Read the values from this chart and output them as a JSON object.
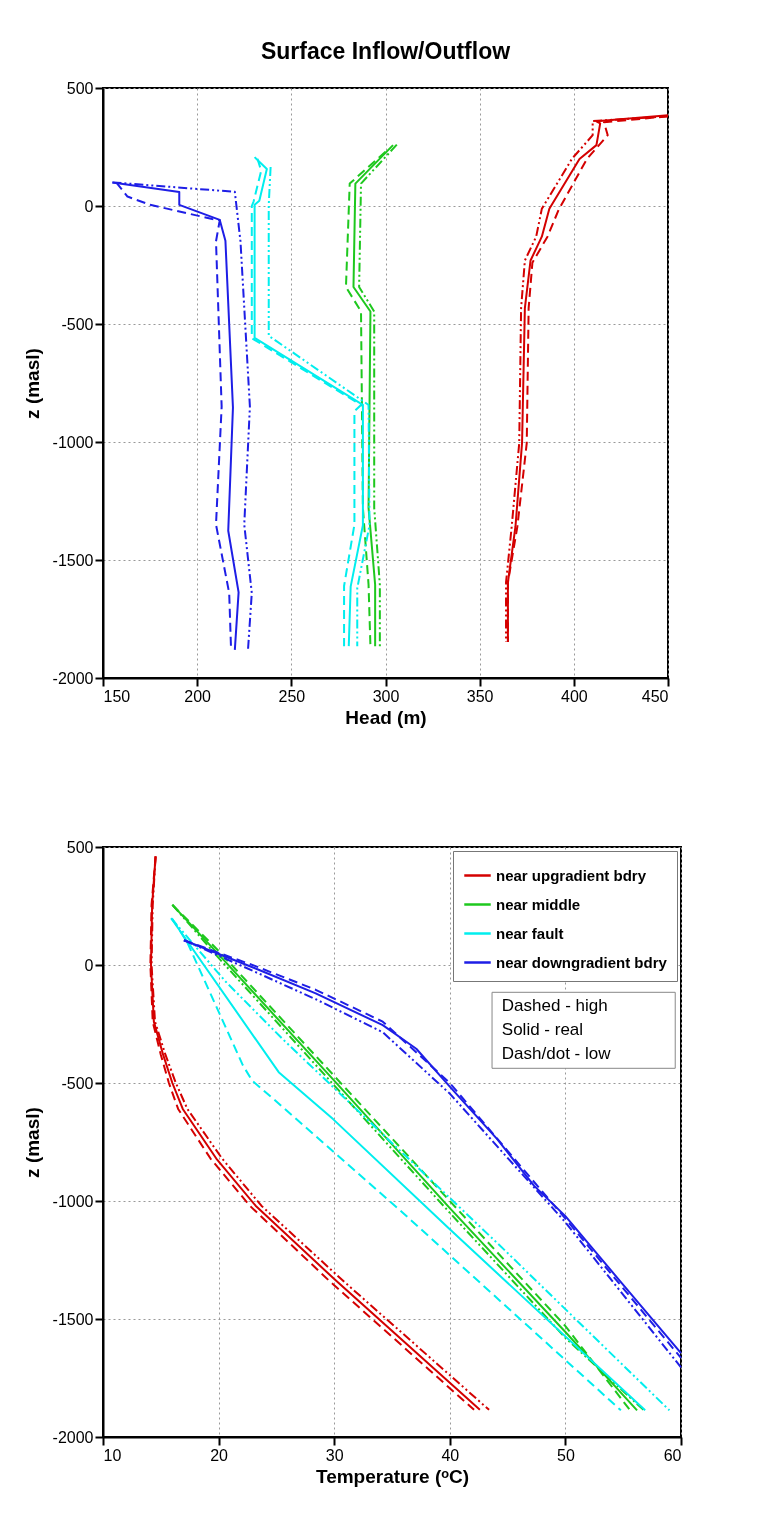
{
  "chart_data": [
    {
      "type": "line",
      "title": "Surface Inflow/Outflow",
      "xlabel": "Head (m)",
      "ylabel": "z (masl)",
      "xlim": [
        150,
        450
      ],
      "ylim": [
        -2000,
        500
      ],
      "xticks": [
        150,
        200,
        250,
        300,
        350,
        400,
        450
      ],
      "yticks": [
        -2000,
        -1500,
        -1000,
        -500,
        0,
        500
      ],
      "grid": true,
      "series": [
        {
          "color": "#d40000",
          "line_style": "solid",
          "x": [
            450,
            412,
            414,
            412,
            403,
            387,
            383,
            377,
            374,
            372.5,
            369,
            365,
            365
          ],
          "values": [
            385,
            359,
            350,
            258,
            199,
            -12,
            -130,
            -231,
            -433,
            -1005,
            -1359,
            -1595,
            -1847
          ]
        },
        {
          "color": "#d40000",
          "line_style": "dashed",
          "x": [
            450,
            416,
            418,
            407,
            392,
            386,
            378,
            376,
            375,
            370,
            365,
            365
          ],
          "values": [
            380,
            355,
            300,
            200,
            -15,
            -130,
            -240,
            -433,
            -1005,
            -1359,
            -1595,
            -1847
          ]
        },
        {
          "color": "#d40000",
          "line_style": "dotted",
          "x": [
            450,
            410,
            410,
            399,
            383,
            380,
            374,
            372,
            371,
            367,
            364,
            364
          ],
          "values": [
            380,
            360,
            300,
            200,
            -12,
            -130,
            -231,
            -433,
            -1005,
            -1359,
            -1595,
            -1847
          ]
        },
        {
          "color": "#1ec81e",
          "line_style": "solid",
          "x": [
            304,
            284,
            283,
            292,
            291,
            294.5,
            294.5
          ],
          "values": [
            258,
            95,
            -343,
            -447,
            -1279,
            -1605,
            -1865
          ]
        },
        {
          "color": "#1ec81e",
          "line_style": "dashed",
          "x": [
            300,
            281,
            279,
            287,
            288,
            291,
            292
          ],
          "values": [
            230,
            95,
            -343,
            -447,
            -1279,
            -1605,
            -1865
          ]
        },
        {
          "color": "#1ec81e",
          "line_style": "dotted",
          "x": [
            306,
            287,
            286,
            294,
            294,
            297,
            297
          ],
          "values": [
            260,
            95,
            -343,
            -447,
            -1279,
            -1605,
            -1865
          ]
        },
        {
          "color": "#00eeee",
          "line_style": "solid",
          "x": [
            230.5,
            237,
            233,
            230.5,
            230.5,
            288,
            288,
            281.5,
            280.5
          ],
          "values": [
            207,
            157,
            22,
            5,
            -559,
            -843,
            -1353,
            -1613,
            -1865
          ]
        },
        {
          "color": "#00eeee",
          "line_style": "dashed",
          "x": [
            232,
            234,
            230,
            229,
            229,
            287,
            283.5,
            283.5,
            278,
            278
          ],
          "values": [
            200,
            150,
            20,
            0,
            -560,
            -843,
            -870,
            -1350,
            -1610,
            -1865
          ]
        },
        {
          "color": "#00eeee",
          "line_style": "dotted",
          "x": [
            239,
            238,
            238,
            291,
            291.5,
            285,
            285
          ],
          "values": [
            165,
            5,
            -550,
            -843,
            -1353,
            -1620,
            -1865
          ]
        },
        {
          "color": "#1e1ee6",
          "line_style": "solid",
          "x": [
            155,
            190.5,
            190.5,
            212,
            215,
            219,
            216.5,
            222,
            220
          ],
          "values": [
            100,
            59,
            5,
            -59,
            -147,
            -854,
            -1376,
            -1637,
            -1881
          ]
        },
        {
          "color": "#1e1ee6",
          "line_style": "dashed",
          "x": [
            157,
            163,
            175,
            208,
            212,
            210,
            213,
            210,
            217,
            218
          ],
          "values": [
            100,
            40,
            5,
            -55,
            -60,
            -150,
            -850,
            -1350,
            -1640,
            -1880
          ]
        },
        {
          "color": "#1e1ee6",
          "line_style": "dotted",
          "x": [
            155,
            220,
            223,
            228,
            225,
            229,
            227
          ],
          "values": [
            100,
            60,
            -150,
            -850,
            -1350,
            -1640,
            -1880
          ]
        }
      ]
    },
    {
      "type": "line",
      "xlabel": "Temperature (ᵒC)",
      "ylabel": "z (masl)",
      "xlim": [
        10,
        60
      ],
      "ylim": [
        -2000,
        500
      ],
      "xticks": [
        10,
        20,
        30,
        40,
        50,
        60
      ],
      "yticks": [
        -2000,
        -1500,
        -1000,
        -500,
        0,
        500
      ],
      "grid": true,
      "legend": "top right",
      "annotations": [
        "Dashed - high",
        "Solid - real",
        "Dash/dot - low"
      ],
      "series": [
        {
          "name": "near upgradient bdry",
          "color": "#d40000",
          "line_style": "solid",
          "x": [
            14.55,
            14.25,
            14.15,
            14.4,
            15.2,
            16.0,
            16.9,
            19.8,
            23.2,
            30.1,
            42.6
          ],
          "values": [
            460,
            255,
            0,
            -240,
            -380,
            -500,
            -610,
            -820,
            -1020,
            -1335,
            -1885
          ]
        },
        {
          "color": "#d40000",
          "line_style": "dashed",
          "x": [
            14.55,
            14.2,
            14.1,
            14.3,
            15.0,
            15.7,
            16.5,
            19.3,
            22.7,
            29.5,
            42.1
          ],
          "values": [
            460,
            255,
            0,
            -240,
            -380,
            -500,
            -610,
            -820,
            -1020,
            -1335,
            -1885
          ]
        },
        {
          "color": "#d40000",
          "line_style": "dotted",
          "x": [
            14.55,
            14.3,
            14.2,
            14.5,
            15.4,
            16.3,
            17.3,
            20.3,
            23.7,
            30.7,
            43.4
          ],
          "values": [
            460,
            255,
            0,
            -240,
            -380,
            -500,
            -610,
            -820,
            -1020,
            -1335,
            -1885
          ]
        },
        {
          "name": "near middle",
          "color": "#1ec81e",
          "line_style": "solid",
          "x": [
            16,
            20,
            30,
            40,
            50,
            56.2
          ],
          "values": [
            255,
            45,
            -490,
            -1030,
            -1555,
            -1887
          ]
        },
        {
          "color": "#1ec81e",
          "line_style": "dashed",
          "x": [
            16,
            20,
            30,
            40,
            50,
            55.6
          ],
          "values": [
            255,
            60,
            -470,
            -1000,
            -1530,
            -1887
          ]
        },
        {
          "color": "#1ec81e",
          "line_style": "dotted",
          "x": [
            16,
            20,
            30,
            40,
            50,
            56.8
          ],
          "values": [
            255,
            30,
            -510,
            -1050,
            -1580,
            -1887
          ]
        },
        {
          "name": "near fault",
          "color": "#00eeee",
          "line_style": "solid",
          "x": [
            15.9,
            25.2,
            29.9,
            40,
            56.9
          ],
          "values": [
            198,
            -454,
            -653,
            -1120,
            -1887
          ]
        },
        {
          "color": "#00eeee",
          "line_style": "dashed",
          "x": [
            16,
            17.3,
            22.1,
            22.9,
            24.4,
            36.1,
            54.8
          ],
          "values": [
            195,
            95,
            -425,
            -490,
            -553,
            -1057,
            -1887
          ]
        },
        {
          "color": "#00eeee",
          "line_style": "dotted",
          "x": [
            15.9,
            20.6,
            25.5,
            44.7,
            59.0
          ],
          "values": [
            198,
            -70,
            -312,
            -1206,
            -1887
          ]
        },
        {
          "name": "near downgradient bdry",
          "color": "#1e1ee6",
          "line_style": "solid",
          "x": [
            17,
            23.2,
            28.4,
            34.2,
            37.1,
            40,
            44.1,
            47.3,
            50,
            54.6,
            60
          ],
          "values": [
            105,
            -15,
            -120,
            -255,
            -355,
            -515,
            -738,
            -936,
            -1064,
            -1332,
            -1645
          ]
        },
        {
          "color": "#1e1ee6",
          "line_style": "dashed",
          "x": [
            17,
            23.2,
            28.4,
            34.2,
            40,
            50,
            60
          ],
          "values": [
            105,
            -5,
            -105,
            -240,
            -500,
            -1075,
            -1665
          ]
        },
        {
          "color": "#1e1ee6",
          "line_style": "dotted",
          "x": [
            17,
            23.2,
            28.4,
            34.2,
            40,
            50,
            60
          ],
          "values": [
            105,
            -30,
            -145,
            -285,
            -545,
            -1090,
            -1705
          ]
        }
      ]
    }
  ]
}
